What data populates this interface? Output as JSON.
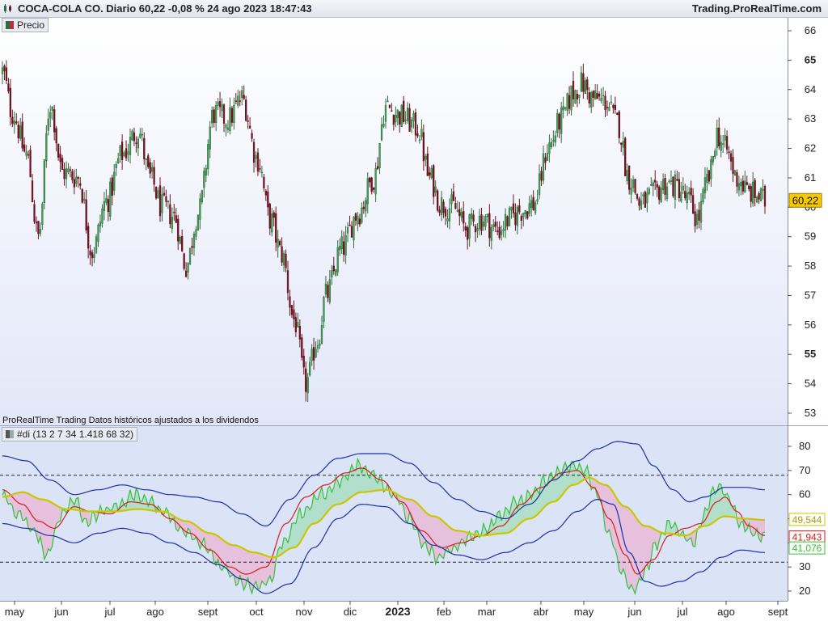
{
  "header": {
    "title": "COCA-COLA CO. Diario 60,22 -0,08 % 24 ago 2023 18:47:43",
    "brand": "Trading.ProRealTime.com"
  },
  "price_panel": {
    "legend_label": "Precio",
    "last_price_label": "60,22",
    "footnote": "ProRealTime Trading  Datos históricos ajustados a los dividendos"
  },
  "indicator_panel": {
    "legend_label": "#di (13 2 7 34 1.418 68 32)",
    "value_labels": [
      "49,544",
      "41,943",
      "41,076"
    ]
  },
  "colors": {
    "price_bg_top": "#ffffff",
    "price_bg_bottom": "#e2e7f8",
    "ind_bg": "#dbe3f7",
    "candle_up": "#2f6e3a",
    "candle_down": "#6b1520",
    "blue_band": "#1c2fa8",
    "red_line": "#d81b1b",
    "green_line": "#35c035",
    "yellow_line": "#c8c800",
    "fill_bull": "#a8dcc0",
    "fill_bear": "#e8b6d4",
    "price_tag": "#f5c800"
  },
  "chart_data": [
    {
      "type": "candlestick",
      "y_axis_side": "right",
      "ylim": [
        52.7,
        66.6
      ],
      "yticks": [
        "66",
        "65",
        "64",
        "63",
        "62",
        "61",
        "60",
        "59",
        "58",
        "57",
        "56",
        "55",
        "54",
        "53"
      ],
      "bold_yticks": [
        "65",
        "55"
      ],
      "x_labels": [
        "may",
        "jun",
        "jul",
        "ago",
        "sept",
        "oct",
        "nov",
        "dic",
        "2023",
        "feb",
        "mar",
        "abr",
        "may",
        "jun",
        "jul",
        "ago",
        "sept"
      ],
      "close_anchors": [
        [
          0,
          64.6
        ],
        [
          5,
          63.2
        ],
        [
          12,
          61.8
        ],
        [
          18,
          59.0
        ],
        [
          24,
          63.5
        ],
        [
          30,
          61.2
        ],
        [
          38,
          61.0
        ],
        [
          45,
          58.5
        ],
        [
          52,
          60.2
        ],
        [
          60,
          61.8
        ],
        [
          68,
          62.6
        ],
        [
          74,
          61.0
        ],
        [
          80,
          60.0
        ],
        [
          86,
          59.7
        ],
        [
          92,
          58.0
        ],
        [
          98,
          59.8
        ],
        [
          106,
          63.2
        ],
        [
          113,
          63.0
        ],
        [
          120,
          63.7
        ],
        [
          128,
          61.6
        ],
        [
          134,
          59.6
        ],
        [
          140,
          58.4
        ],
        [
          146,
          56.2
        ],
        [
          152,
          54.0
        ],
        [
          158,
          55.5
        ],
        [
          162,
          57.0
        ],
        [
          170,
          58.6
        ],
        [
          178,
          59.8
        ],
        [
          186,
          61.0
        ],
        [
          192,
          63.4
        ],
        [
          200,
          63.1
        ],
        [
          208,
          62.7
        ],
        [
          214,
          61.0
        ],
        [
          220,
          60.1
        ],
        [
          226,
          60.0
        ],
        [
          232,
          59.3
        ],
        [
          240,
          59.6
        ],
        [
          248,
          59.2
        ],
        [
          254,
          59.6
        ],
        [
          260,
          59.9
        ],
        [
          266,
          60.1
        ],
        [
          274,
          62.1
        ],
        [
          280,
          63.0
        ],
        [
          286,
          63.9
        ],
        [
          290,
          64.2
        ],
        [
          296,
          63.7
        ],
        [
          302,
          63.6
        ],
        [
          308,
          62.9
        ],
        [
          314,
          61.0
        ],
        [
          320,
          60.1
        ],
        [
          326,
          60.4
        ],
        [
          332,
          60.8
        ],
        [
          338,
          60.7
        ],
        [
          344,
          60.2
        ],
        [
          348,
          59.6
        ],
        [
          354,
          61.0
        ],
        [
          358,
          62.5
        ],
        [
          362,
          62.0
        ],
        [
          368,
          61.0
        ],
        [
          374,
          60.5
        ],
        [
          378,
          60.4
        ],
        [
          382,
          60.2
        ]
      ],
      "last_close": 60.22
    },
    {
      "type": "line",
      "name": "#di (13 2 7 34 1.418 68 32)",
      "ylim": [
        15,
        86
      ],
      "yticks": [
        "80",
        "70",
        "60",
        "50",
        "40",
        "30",
        "20"
      ],
      "hlines": [
        68,
        32
      ],
      "series": [
        {
          "role": "di_fast",
          "color": "green",
          "anchors": [
            [
              0,
              60
            ],
            [
              8,
              52
            ],
            [
              16,
              45
            ],
            [
              22,
              35
            ],
            [
              30,
              52
            ],
            [
              36,
              58
            ],
            [
              42,
              49
            ],
            [
              50,
              53
            ],
            [
              58,
              55
            ],
            [
              66,
              60
            ],
            [
              74,
              57
            ],
            [
              82,
              52
            ],
            [
              90,
              45
            ],
            [
              100,
              40
            ],
            [
              110,
              30
            ],
            [
              118,
              24
            ],
            [
              126,
              22
            ],
            [
              134,
              24
            ],
            [
              140,
              40
            ],
            [
              150,
              52
            ],
            [
              160,
              60
            ],
            [
              170,
              66
            ],
            [
              178,
              72
            ],
            [
              186,
              68
            ],
            [
              196,
              60
            ],
            [
              204,
              50
            ],
            [
              212,
              38
            ],
            [
              218,
              34
            ],
            [
              226,
              38
            ],
            [
              234,
              42
            ],
            [
              242,
              46
            ],
            [
              250,
              52
            ],
            [
              258,
              57
            ],
            [
              266,
              60
            ],
            [
              272,
              66
            ],
            [
              280,
              70
            ],
            [
              286,
              72
            ],
            [
              292,
              70
            ],
            [
              298,
              60
            ],
            [
              304,
              44
            ],
            [
              310,
              28
            ],
            [
              316,
              20
            ],
            [
              322,
              28
            ],
            [
              328,
              40
            ],
            [
              334,
              48
            ],
            [
              340,
              44
            ],
            [
              346,
              40
            ],
            [
              352,
              52
            ],
            [
              356,
              62
            ],
            [
              360,
              63
            ],
            [
              364,
              58
            ],
            [
              370,
              48
            ],
            [
              376,
              44
            ],
            [
              382,
              42
            ]
          ]
        },
        {
          "role": "di_smooth",
          "color": "red",
          "anchors": [
            [
              0,
              62
            ],
            [
              10,
              56
            ],
            [
              18,
              49
            ],
            [
              26,
              46
            ],
            [
              36,
              55
            ],
            [
              44,
              53
            ],
            [
              54,
              52
            ],
            [
              64,
              57
            ],
            [
              74,
              56
            ],
            [
              84,
              50
            ],
            [
              94,
              44
            ],
            [
              104,
              37
            ],
            [
              114,
              30
            ],
            [
              122,
              27
            ],
            [
              132,
              30
            ],
            [
              142,
              48
            ],
            [
              152,
              59
            ],
            [
              162,
              64
            ],
            [
              172,
              69
            ],
            [
              180,
              71
            ],
            [
              190,
              66
            ],
            [
              200,
              57
            ],
            [
              210,
              45
            ],
            [
              220,
              38
            ],
            [
              230,
              40
            ],
            [
              240,
              43
            ],
            [
              250,
              47
            ],
            [
              260,
              56
            ],
            [
              270,
              63
            ],
            [
              280,
              69
            ],
            [
              288,
              70
            ],
            [
              296,
              63
            ],
            [
              304,
              50
            ],
            [
              312,
              35
            ],
            [
              318,
              27
            ],
            [
              326,
              33
            ],
            [
              334,
              43
            ],
            [
              342,
              46
            ],
            [
              350,
              48
            ],
            [
              358,
              57
            ],
            [
              362,
              59
            ],
            [
              368,
              53
            ],
            [
              374,
              47
            ],
            [
              382,
              43
            ]
          ]
        },
        {
          "role": "di_signal",
          "color": "yellow",
          "anchors": [
            [
              0,
              59
            ],
            [
              10,
              61
            ],
            [
              20,
              58
            ],
            [
              32,
              54
            ],
            [
              44,
              53
            ],
            [
              56,
              53
            ],
            [
              68,
              54
            ],
            [
              80,
              53
            ],
            [
              92,
              49
            ],
            [
              104,
              44
            ],
            [
              116,
              39
            ],
            [
              126,
              36
            ],
            [
              136,
              34
            ],
            [
              146,
              38
            ],
            [
              156,
              48
            ],
            [
              168,
              56
            ],
            [
              180,
              61
            ],
            [
              192,
              62
            ],
            [
              204,
              58
            ],
            [
              216,
              51
            ],
            [
              228,
              45
            ],
            [
              240,
              43
            ],
            [
              252,
              44
            ],
            [
              264,
              50
            ],
            [
              276,
              57
            ],
            [
              286,
              64
            ],
            [
              294,
              67
            ],
            [
              302,
              64
            ],
            [
              312,
              55
            ],
            [
              322,
              47
            ],
            [
              332,
              44
            ],
            [
              342,
              43
            ],
            [
              352,
              47
            ],
            [
              362,
              51
            ],
            [
              372,
              50
            ],
            [
              382,
              49.5
            ]
          ]
        },
        {
          "role": "band_upper",
          "color": "blue",
          "anchors": [
            [
              0,
              76
            ],
            [
              12,
              74
            ],
            [
              24,
              66
            ],
            [
              36,
              60
            ],
            [
              48,
              62
            ],
            [
              60,
              64
            ],
            [
              72,
              62
            ],
            [
              84,
              60
            ],
            [
              96,
              59
            ],
            [
              108,
              57
            ],
            [
              120,
              52
            ],
            [
              132,
              47
            ],
            [
              144,
              58
            ],
            [
              156,
              68
            ],
            [
              168,
              75
            ],
            [
              180,
              77
            ],
            [
              192,
              77
            ],
            [
              204,
              73
            ],
            [
              216,
              65
            ],
            [
              228,
              58
            ],
            [
              240,
              53
            ],
            [
              252,
              50
            ],
            [
              264,
              56
            ],
            [
              276,
              66
            ],
            [
              288,
              74
            ],
            [
              298,
              79
            ],
            [
              308,
              82
            ],
            [
              318,
              81
            ],
            [
              326,
              72
            ],
            [
              336,
              62
            ],
            [
              344,
              57
            ],
            [
              352,
              59
            ],
            [
              362,
              63
            ],
            [
              372,
              63
            ],
            [
              382,
              62
            ]
          ]
        },
        {
          "role": "band_lower",
          "color": "blue",
          "anchors": [
            [
              0,
              48
            ],
            [
              12,
              46
            ],
            [
              24,
              43
            ],
            [
              36,
              40
            ],
            [
              48,
              44
            ],
            [
              60,
              46
            ],
            [
              72,
              44
            ],
            [
              84,
              40
            ],
            [
              96,
              36
            ],
            [
              108,
              31
            ],
            [
              120,
              25
            ],
            [
              132,
              19
            ],
            [
              144,
              23
            ],
            [
              156,
              38
            ],
            [
              168,
              50
            ],
            [
              180,
              56
            ],
            [
              192,
              55
            ],
            [
              204,
              48
            ],
            [
              216,
              39
            ],
            [
              228,
              35
            ],
            [
              240,
              33
            ],
            [
              252,
              36
            ],
            [
              264,
              40
            ],
            [
              276,
              45
            ],
            [
              288,
              53
            ],
            [
              298,
              58
            ],
            [
              306,
              56
            ],
            [
              314,
              36
            ],
            [
              322,
              24
            ],
            [
              330,
              22
            ],
            [
              340,
              24
            ],
            [
              350,
              28
            ],
            [
              360,
              34
            ],
            [
              370,
              37
            ],
            [
              382,
              36
            ]
          ]
        }
      ]
    }
  ]
}
